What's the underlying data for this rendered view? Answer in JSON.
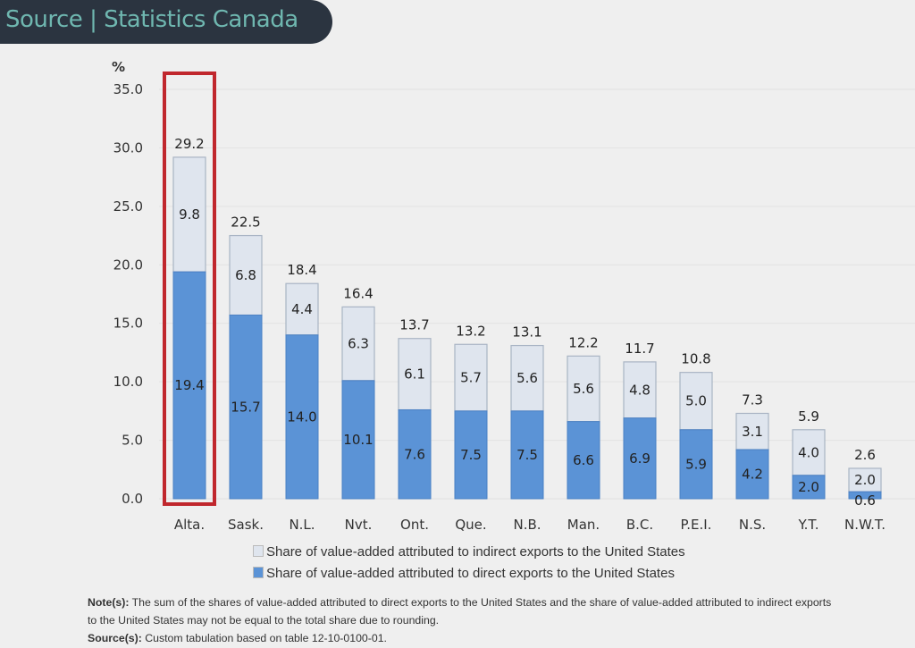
{
  "banner": {
    "title": "Source | Statistics Canada"
  },
  "chart_data": {
    "type": "bar",
    "stacked": true,
    "ylabel": "%",
    "ylim": [
      0,
      35
    ],
    "yticks": [
      "0.0",
      "5.0",
      "10.0",
      "15.0",
      "20.0",
      "25.0",
      "30.0",
      "35.0"
    ],
    "categories": [
      "Alta.",
      "Sask.",
      "N.L.",
      "Nvt.",
      "Ont.",
      "Que.",
      "N.B.",
      "Man.",
      "B.C.",
      "P.E.I.",
      "N.S.",
      "Y.T.",
      "N.W.T."
    ],
    "series": [
      {
        "name": "Share of value-added attributed to direct exports to the United States",
        "color": "#5b93d6",
        "values": [
          19.4,
          15.7,
          14.0,
          10.1,
          7.6,
          7.5,
          7.5,
          6.6,
          6.9,
          5.9,
          4.2,
          2.0,
          0.6
        ]
      },
      {
        "name": "Share of value-added attributed to indirect exports to the United States",
        "color": "#dfe5ee",
        "values": [
          9.8,
          6.8,
          4.4,
          6.3,
          6.1,
          5.7,
          5.6,
          5.6,
          4.8,
          5.0,
          3.1,
          4.0,
          2.0
        ]
      }
    ],
    "totals": [
      29.2,
      22.5,
      18.4,
      16.4,
      13.7,
      13.2,
      13.1,
      12.2,
      11.7,
      10.8,
      7.3,
      5.9,
      2.6
    ],
    "highlighted_category": "Alta.",
    "highlight_color": "#c0272d",
    "grid": true,
    "legend_placement": "bottom"
  },
  "notes": {
    "note_label": "Note(s):",
    "note_text": " The sum of the shares of value-added attributed to direct exports to the United States and the share of value-added attributed to indirect exports to the United States may not be equal to the total share due to rounding.",
    "source_label": "Source(s):",
    "source_text": " Custom tabulation based on table 12-10-0100-01."
  }
}
